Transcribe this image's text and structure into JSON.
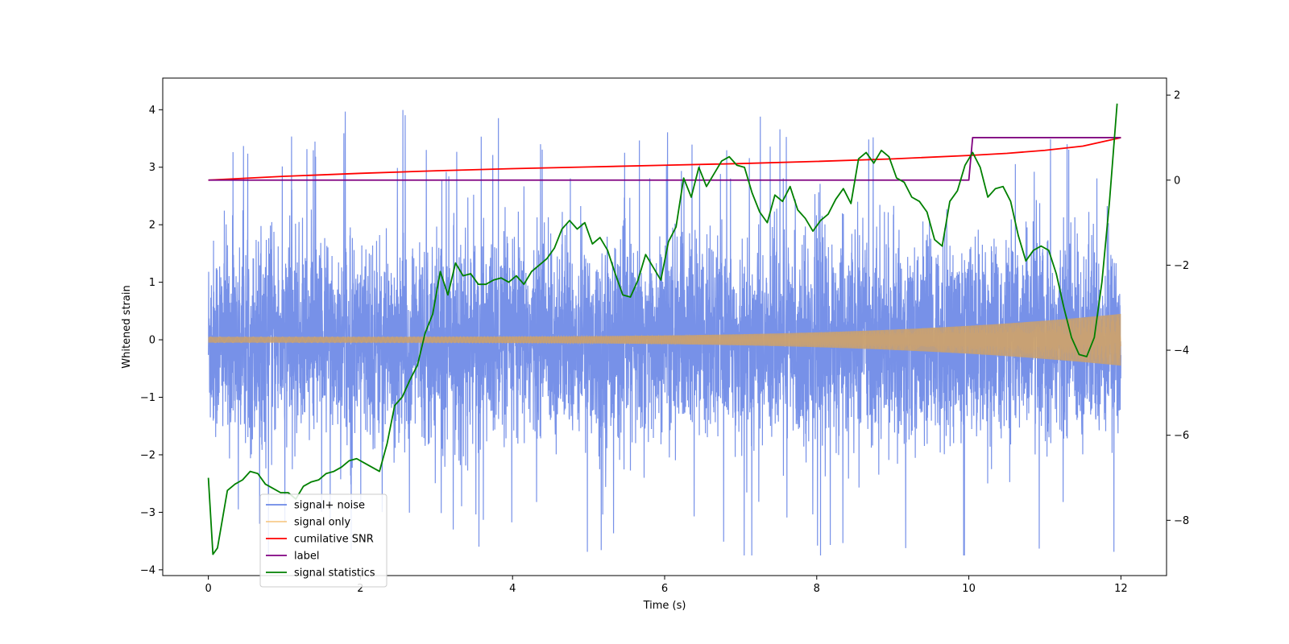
{
  "chart_data": {
    "type": "line",
    "title": "",
    "xlabel": "Time (s)",
    "ylabel": "Whitened strain",
    "ylabel_right": "",
    "xlim": [
      -0.6,
      12.6
    ],
    "ylim": [
      -4.1,
      4.55
    ],
    "ylim_right": [
      -9.3,
      2.4
    ],
    "x_ticks": [
      0,
      2,
      4,
      6,
      8,
      10,
      12
    ],
    "x_tick_labels": [
      "0",
      "2",
      "4",
      "6",
      "8",
      "10",
      "12"
    ],
    "y_ticks": [
      -4,
      -3,
      -2,
      -1,
      0,
      1,
      2,
      3,
      4
    ],
    "y_tick_labels": [
      "−4",
      "−3",
      "−2",
      "−1",
      "0",
      "1",
      "2",
      "3",
      "4"
    ],
    "y2_ticks": [
      -8,
      -6,
      -4,
      -2,
      0,
      2
    ],
    "y2_tick_labels": [
      "−8",
      "−6",
      "−4",
      "−2",
      "0",
      "2"
    ],
    "legend_location": "lower-left",
    "grid": false,
    "series": [
      {
        "name": "signal+ noise",
        "color": "#6b88e6",
        "axis": "left",
        "style": "dense noise, roughly within ±2.5, peaks up to about ±4"
      },
      {
        "name": "signal only",
        "color": "#f5b75a",
        "axis": "left",
        "style": "chirp with amplitude growing from about 0.05 at t=0 to about 0.45 at t=12"
      },
      {
        "name": "cumilative SNR",
        "color": "#ff0000",
        "axis": "right",
        "x": [
          0,
          1,
          2,
          3,
          4,
          5,
          6,
          7,
          8,
          9,
          10,
          10.5,
          11,
          11.5,
          12
        ],
        "values": [
          0.0,
          0.09,
          0.16,
          0.22,
          0.27,
          0.31,
          0.35,
          0.39,
          0.44,
          0.5,
          0.58,
          0.63,
          0.7,
          0.8,
          1.0
        ]
      },
      {
        "name": "label",
        "color": "#800080",
        "axis": "right",
        "x": [
          0,
          10.0,
          10.05,
          12
        ],
        "values": [
          0,
          0,
          1,
          1
        ]
      },
      {
        "name": "signal statistics",
        "color": "#008000",
        "axis": "right",
        "x": [
          0,
          0.06,
          0.12,
          0.25,
          0.35,
          0.45,
          0.55,
          0.65,
          0.75,
          0.85,
          0.95,
          1.05,
          1.15,
          1.25,
          1.35,
          1.45,
          1.55,
          1.65,
          1.75,
          1.85,
          1.95,
          2.05,
          2.15,
          2.25,
          2.35,
          2.45,
          2.55,
          2.65,
          2.75,
          2.85,
          2.95,
          3.05,
          3.15,
          3.25,
          3.35,
          3.45,
          3.55,
          3.65,
          3.75,
          3.85,
          3.95,
          4.05,
          4.15,
          4.25,
          4.35,
          4.45,
          4.55,
          4.65,
          4.75,
          4.85,
          4.95,
          5.05,
          5.15,
          5.25,
          5.35,
          5.45,
          5.55,
          5.65,
          5.75,
          5.85,
          5.95,
          6.05,
          6.15,
          6.25,
          6.35,
          6.45,
          6.55,
          6.65,
          6.75,
          6.85,
          6.95,
          7.05,
          7.15,
          7.25,
          7.35,
          7.45,
          7.55,
          7.65,
          7.75,
          7.85,
          7.95,
          8.05,
          8.15,
          8.25,
          8.35,
          8.45,
          8.55,
          8.65,
          8.75,
          8.85,
          8.95,
          9.05,
          9.15,
          9.25,
          9.35,
          9.45,
          9.55,
          9.65,
          9.75,
          9.85,
          9.95,
          10.05,
          10.15,
          10.25,
          10.35,
          10.45,
          10.55,
          10.65,
          10.75,
          10.85,
          10.95,
          11.05,
          11.15,
          11.25,
          11.35,
          11.45,
          11.55,
          11.65,
          11.75,
          11.85,
          11.95
        ],
        "values": [
          -7.0,
          -8.8,
          -8.65,
          -7.3,
          -7.15,
          -7.05,
          -6.85,
          -6.9,
          -7.15,
          -7.25,
          -7.35,
          -7.35,
          -7.5,
          -7.2,
          -7.1,
          -7.05,
          -6.9,
          -6.85,
          -6.75,
          -6.6,
          -6.55,
          -6.65,
          -6.75,
          -6.85,
          -6.2,
          -5.3,
          -5.1,
          -4.7,
          -4.35,
          -3.6,
          -3.15,
          -2.15,
          -2.7,
          -1.95,
          -2.25,
          -2.2,
          -2.45,
          -2.45,
          -2.35,
          -2.3,
          -2.4,
          -2.25,
          -2.45,
          -2.15,
          -2.0,
          -1.85,
          -1.6,
          -1.15,
          -0.95,
          -1.15,
          -1.0,
          -1.5,
          -1.35,
          -1.65,
          -2.2,
          -2.7,
          -2.75,
          -2.35,
          -1.75,
          -2.05,
          -2.35,
          -1.45,
          -1.1,
          0.05,
          -0.4,
          0.3,
          -0.15,
          0.15,
          0.45,
          0.55,
          0.35,
          0.3,
          -0.3,
          -0.75,
          -1.0,
          -0.35,
          -0.5,
          -0.15,
          -0.7,
          -0.9,
          -1.2,
          -0.95,
          -0.8,
          -0.45,
          -0.2,
          -0.55,
          0.5,
          0.65,
          0.4,
          0.7,
          0.55,
          0.05,
          -0.05,
          -0.4,
          -0.5,
          -0.75,
          -1.4,
          -1.55,
          -0.5,
          -0.25,
          0.35,
          0.65,
          0.3,
          -0.4,
          -0.2,
          -0.15,
          -0.5,
          -1.3,
          -1.9,
          -1.65,
          -1.55,
          -1.65,
          -2.2,
          -3.0,
          -3.7,
          -4.1,
          -4.15,
          -3.7,
          -2.4,
          -0.5,
          1.8
        ]
      }
    ]
  }
}
